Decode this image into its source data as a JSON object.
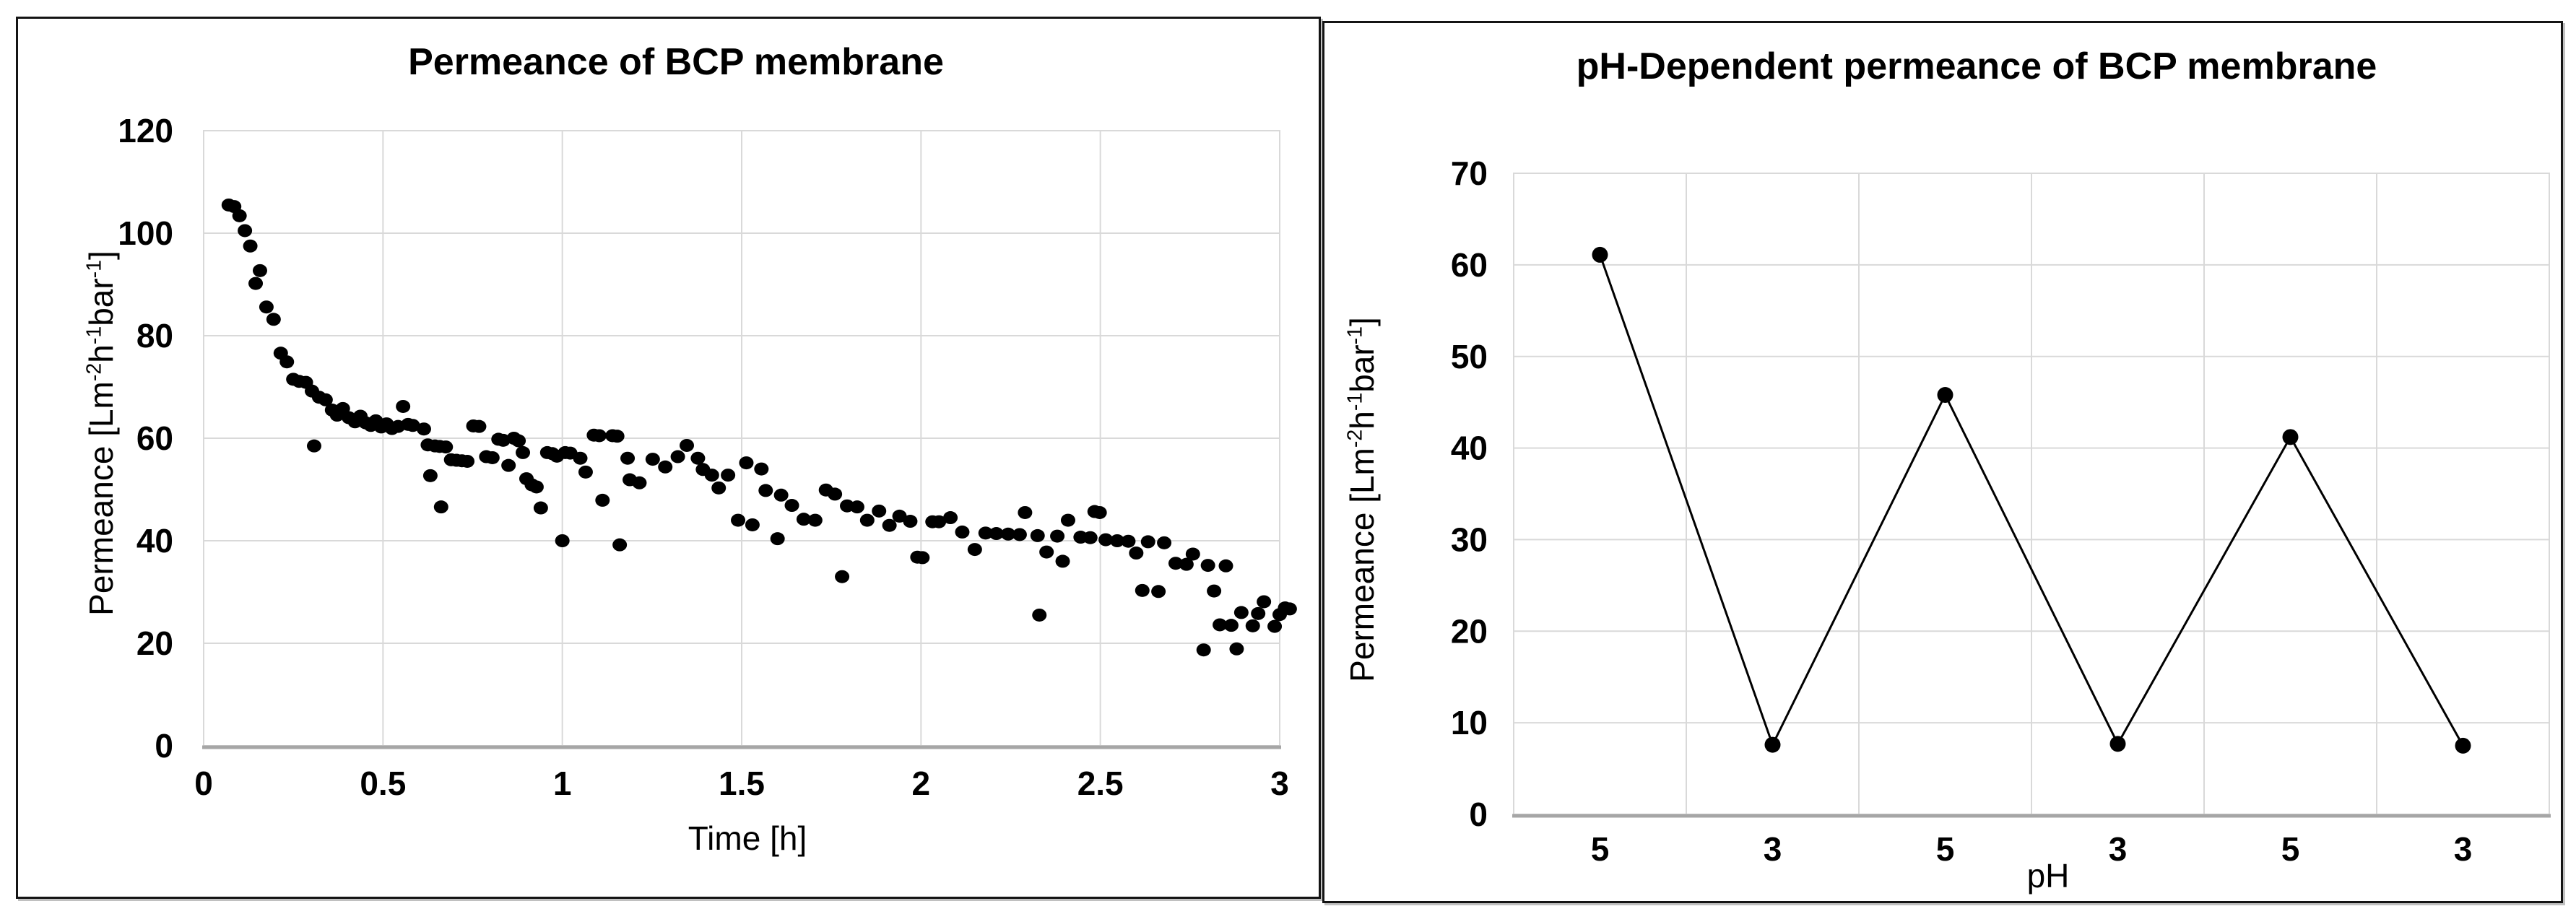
{
  "figure": {
    "background": "#ffffff",
    "panel_border_color": "#141414",
    "gridline_color": "#d9d9d9",
    "axis_line_color": "#a6a6a6",
    "marker_color": "#000000"
  },
  "chart_data": [
    {
      "type": "scatter",
      "title": "Permeance of BCP membrane",
      "xlabel": "Time [h]",
      "ylabel_segments": [
        {
          "text": "Permeance [Lm"
        },
        {
          "text": "-2",
          "sup": true
        },
        {
          "text": "h"
        },
        {
          "text": "-1",
          "sup": true
        },
        {
          "text": "bar"
        },
        {
          "text": "-1",
          "sup": true
        },
        {
          "text": "]"
        }
      ],
      "xlim": [
        0,
        3
      ],
      "ylim": [
        0,
        120
      ],
      "grid": true,
      "legend": "none",
      "xticks": [
        [
          0,
          "0"
        ],
        [
          0.5,
          "0.5"
        ],
        [
          1,
          "1"
        ],
        [
          1.5,
          "1.5"
        ],
        [
          2,
          "2"
        ],
        [
          2.5,
          "2.5"
        ],
        [
          3,
          "3"
        ]
      ],
      "yticks": [
        [
          0,
          "0"
        ],
        [
          20,
          "20"
        ],
        [
          40,
          "40"
        ],
        [
          60,
          "60"
        ],
        [
          80,
          "80"
        ],
        [
          100,
          "100"
        ],
        [
          120,
          "120"
        ]
      ],
      "points": [
        [
          0.07,
          105.5
        ],
        [
          0.085,
          105.2
        ],
        [
          0.1,
          103.4
        ],
        [
          0.115,
          100.5
        ],
        [
          0.13,
          97.5
        ],
        [
          0.145,
          90.2
        ],
        [
          0.157,
          92.7
        ],
        [
          0.175,
          85.6
        ],
        [
          0.195,
          83.2
        ],
        [
          0.215,
          76.6
        ],
        [
          0.232,
          74.9
        ],
        [
          0.25,
          71.5
        ],
        [
          0.266,
          71.1
        ],
        [
          0.285,
          70.9
        ],
        [
          0.302,
          69.2
        ],
        [
          0.308,
          58.5
        ],
        [
          0.322,
          68.0
        ],
        [
          0.34,
          67.5
        ],
        [
          0.358,
          65.5
        ],
        [
          0.372,
          64.5
        ],
        [
          0.388,
          65.8
        ],
        [
          0.405,
          64.0
        ],
        [
          0.422,
          63.2
        ],
        [
          0.437,
          64.3
        ],
        [
          0.452,
          63.0
        ],
        [
          0.466,
          62.5
        ],
        [
          0.48,
          63.4
        ],
        [
          0.495,
          62.2
        ],
        [
          0.51,
          62.8
        ],
        [
          0.525,
          61.9
        ],
        [
          0.542,
          62.3
        ],
        [
          0.556,
          66.2
        ],
        [
          0.57,
          62.7
        ],
        [
          0.583,
          62.5
        ],
        [
          0.614,
          61.8
        ],
        [
          0.625,
          58.7
        ],
        [
          0.632,
          52.7
        ],
        [
          0.645,
          58.5
        ],
        [
          0.658,
          58.4
        ],
        [
          0.662,
          46.6
        ],
        [
          0.675,
          58.3
        ],
        [
          0.69,
          55.8
        ],
        [
          0.705,
          55.7
        ],
        [
          0.72,
          55.6
        ],
        [
          0.735,
          55.5
        ],
        [
          0.752,
          62.4
        ],
        [
          0.768,
          62.3
        ],
        [
          0.788,
          56.4
        ],
        [
          0.805,
          56.2
        ],
        [
          0.822,
          59.8
        ],
        [
          0.835,
          59.6
        ],
        [
          0.85,
          54.7
        ],
        [
          0.865,
          60.0
        ],
        [
          0.878,
          59.5
        ],
        [
          0.89,
          57.2
        ],
        [
          0.9,
          52.1
        ],
        [
          0.915,
          50.9
        ],
        [
          0.928,
          50.5
        ],
        [
          0.94,
          46.4
        ],
        [
          0.958,
          57.2
        ],
        [
          0.972,
          57.0
        ],
        [
          0.985,
          56.5
        ],
        [
          1.0,
          40.0
        ],
        [
          1.008,
          57.2
        ],
        [
          1.022,
          57.1
        ],
        [
          1.05,
          56.1
        ],
        [
          1.065,
          53.4
        ],
        [
          1.088,
          60.6
        ],
        [
          1.103,
          60.5
        ],
        [
          1.112,
          47.9
        ],
        [
          1.14,
          60.5
        ],
        [
          1.153,
          60.4
        ],
        [
          1.16,
          39.2
        ],
        [
          1.182,
          56.1
        ],
        [
          1.188,
          51.9
        ],
        [
          1.215,
          51.3
        ],
        [
          1.252,
          55.9
        ],
        [
          1.287,
          54.4
        ],
        [
          1.322,
          56.4
        ],
        [
          1.347,
          58.6
        ],
        [
          1.378,
          56.1
        ],
        [
          1.392,
          53.9
        ],
        [
          1.417,
          52.8
        ],
        [
          1.436,
          50.3
        ],
        [
          1.462,
          52.8
        ],
        [
          1.49,
          44.0
        ],
        [
          1.513,
          55.2
        ],
        [
          1.53,
          43.1
        ],
        [
          1.555,
          54.0
        ],
        [
          1.567,
          49.8
        ],
        [
          1.6,
          40.4
        ],
        [
          1.61,
          48.9
        ],
        [
          1.64,
          46.9
        ],
        [
          1.673,
          44.2
        ],
        [
          1.705,
          44.0
        ],
        [
          1.735,
          49.9
        ],
        [
          1.76,
          49.1
        ],
        [
          1.78,
          33.0
        ],
        [
          1.794,
          46.8
        ],
        [
          1.822,
          46.6
        ],
        [
          1.85,
          44.0
        ],
        [
          1.883,
          45.8
        ],
        [
          1.912,
          43.0
        ],
        [
          1.94,
          44.8
        ],
        [
          1.97,
          43.8
        ],
        [
          1.99,
          36.8
        ],
        [
          2.004,
          36.7
        ],
        [
          2.032,
          43.7
        ],
        [
          2.05,
          43.7
        ],
        [
          2.082,
          44.5
        ],
        [
          2.115,
          41.7
        ],
        [
          2.15,
          38.3
        ],
        [
          2.18,
          41.5
        ],
        [
          2.21,
          41.4
        ],
        [
          2.243,
          41.3
        ],
        [
          2.275,
          41.2
        ],
        [
          2.29,
          45.5
        ],
        [
          2.325,
          41.0
        ],
        [
          2.33,
          25.5
        ],
        [
          2.35,
          37.8
        ],
        [
          2.38,
          40.9
        ],
        [
          2.395,
          36.0
        ],
        [
          2.41,
          44.0
        ],
        [
          2.445,
          40.7
        ],
        [
          2.472,
          40.6
        ],
        [
          2.484,
          45.7
        ],
        [
          2.498,
          45.5
        ],
        [
          2.515,
          40.2
        ],
        [
          2.547,
          40.0
        ],
        [
          2.578,
          39.9
        ],
        [
          2.6,
          37.6
        ],
        [
          2.617,
          30.3
        ],
        [
          2.633,
          39.8
        ],
        [
          2.662,
          30.1
        ],
        [
          2.678,
          39.6
        ],
        [
          2.71,
          35.6
        ],
        [
          2.74,
          35.4
        ],
        [
          2.758,
          37.4
        ],
        [
          2.788,
          18.7
        ],
        [
          2.8,
          35.2
        ],
        [
          2.817,
          30.2
        ],
        [
          2.833,
          23.6
        ],
        [
          2.85,
          35.1
        ],
        [
          2.865,
          23.5
        ],
        [
          2.88,
          18.9
        ],
        [
          2.893,
          26.0
        ],
        [
          2.925,
          23.4
        ],
        [
          2.94,
          25.8
        ],
        [
          2.956,
          28.1
        ],
        [
          2.986,
          23.3
        ],
        [
          3.0,
          25.6
        ],
        [
          3.015,
          26.9
        ],
        [
          3.028,
          26.7
        ]
      ]
    },
    {
      "type": "line",
      "title": "pH-Dependent permeance of BCP membrane",
      "xlabel": "pH",
      "ylabel_segments": [
        {
          "text": "Permeance [Lm"
        },
        {
          "text": "-2",
          "sup": true
        },
        {
          "text": "h"
        },
        {
          "text": "-1",
          "sup": true
        },
        {
          "text": "bar"
        },
        {
          "text": "-1",
          "sup": true
        },
        {
          "text": "]"
        }
      ],
      "ylim": [
        0,
        70
      ],
      "grid": true,
      "legend": "none",
      "yticks": [
        [
          0,
          "0"
        ],
        [
          10,
          "10"
        ],
        [
          20,
          "20"
        ],
        [
          30,
          "30"
        ],
        [
          40,
          "40"
        ],
        [
          50,
          "50"
        ],
        [
          60,
          "60"
        ],
        [
          70,
          "70"
        ]
      ],
      "categories": [
        "5",
        "3",
        "5",
        "3",
        "5",
        "3"
      ],
      "values": [
        61.1,
        7.6,
        45.8,
        7.7,
        41.2,
        7.5
      ]
    }
  ]
}
